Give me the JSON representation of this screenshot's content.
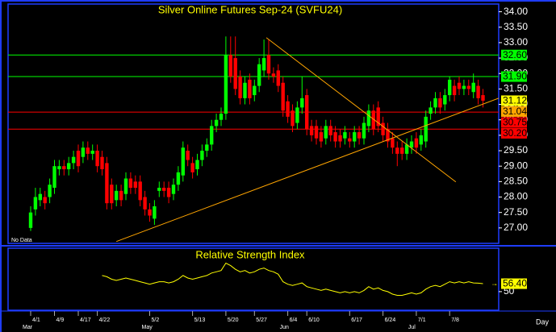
{
  "chart_data": [
    {
      "type": "candlestick",
      "title": "Silver Online Futures Sep-24 (SVFU24)",
      "note": "No Data",
      "x_label": "Day",
      "categories": [
        "4/1",
        null,
        null,
        null,
        null,
        "4/9",
        null,
        null,
        null,
        null,
        "4/17",
        null,
        null,
        null,
        "4/22",
        null,
        null,
        null,
        null,
        null,
        null,
        null,
        null,
        null,
        null,
        "5/2",
        null,
        null,
        null,
        null,
        null,
        null,
        null,
        null,
        "5/13",
        null,
        null,
        null,
        null,
        null,
        null,
        "5/20",
        null,
        null,
        null,
        null,
        null,
        "5/27",
        null,
        null,
        null,
        null,
        null,
        null,
        "6/4",
        null,
        null,
        null,
        "6/10",
        null,
        null,
        null,
        null,
        null,
        null,
        null,
        null,
        "6/17",
        null,
        null,
        null,
        null,
        null,
        null,
        "6/24",
        null,
        null,
        null,
        null,
        null,
        null,
        "7/1",
        null,
        null,
        null,
        null,
        null,
        null,
        "7/8",
        null,
        null,
        null,
        null,
        null,
        null,
        null
      ],
      "months": [
        "Mar",
        null,
        null,
        null,
        null,
        null,
        null,
        null,
        null,
        null,
        null,
        null,
        null,
        null,
        null,
        null,
        null,
        null,
        null,
        null,
        null,
        null,
        null,
        null,
        null,
        "May",
        null,
        null,
        null,
        null,
        null,
        null,
        null,
        null,
        null,
        null,
        null,
        null,
        null,
        null,
        null,
        null,
        null,
        null,
        null,
        null,
        null,
        null,
        null,
        null,
        null,
        null,
        null,
        null,
        "Jun",
        null,
        null,
        null,
        null,
        null,
        null,
        null,
        null,
        null,
        null,
        null,
        null,
        null,
        null,
        null,
        null,
        null,
        null,
        null,
        null,
        null,
        null,
        null,
        null,
        null,
        null,
        "Jul",
        null,
        null,
        null,
        null,
        null,
        null,
        null,
        null,
        null,
        null,
        null,
        null,
        null,
        null
      ],
      "open": [
        27.0,
        27.6,
        27.9,
        28.0,
        28.0,
        28.3,
        28.9,
        29.0,
        28.9,
        29.1,
        29.5,
        29.3,
        29.6,
        29.4,
        29.5,
        29.3,
        29.1,
        28.4,
        27.9,
        28.2,
        28.1,
        28.6,
        28.5,
        28.5,
        28.0,
        27.6,
        27.3,
        28.2,
        28.3,
        28.3,
        28.1,
        28.4,
        28.7,
        29.5,
        29.1,
        28.9,
        29.2,
        29.5,
        29.7,
        30.3,
        30.5,
        30.7,
        32.6,
        32.5,
        31.9,
        31.2,
        31.8,
        31.3,
        31.6,
        32.1,
        32.6,
        32.0,
        32.1,
        31.7,
        31.1,
        30.8,
        30.4,
        30.9,
        31.3,
        30.3,
        30.3,
        30.1,
        29.9,
        30.3,
        30.1,
        30.0,
        29.9,
        29.9,
        29.8,
        30.1,
        29.9,
        30.3,
        30.8,
        30.9,
        30.4,
        30.2,
        29.9,
        29.6,
        29.6,
        29.4,
        29.6,
        29.9,
        29.7,
        29.8,
        30.7,
        30.9,
        31.2,
        31.0,
        31.3,
        31.6,
        31.7,
        31.5,
        31.6,
        31.4,
        31.6,
        31.3
      ],
      "high": [
        27.7,
        28.3,
        28.3,
        28.2,
        28.6,
        29.2,
        29.2,
        29.2,
        29.3,
        29.5,
        29.7,
        29.8,
        29.8,
        29.7,
        29.7,
        29.5,
        29.3,
        28.6,
        28.4,
        28.4,
        28.8,
        28.8,
        28.7,
        28.7,
        28.2,
        27.8,
        27.9,
        28.5,
        28.5,
        28.5,
        28.6,
        29.0,
        29.8,
        29.7,
        29.3,
        29.4,
        29.7,
        29.9,
        30.5,
        30.7,
        30.9,
        33.2,
        33.2,
        33.2,
        32.1,
        31.9,
        32.0,
        31.8,
        32.5,
        33.1,
        33.1,
        32.2,
        32.3,
        31.9,
        31.3,
        31.0,
        31.1,
        31.9,
        31.5,
        30.5,
        30.5,
        30.3,
        30.5,
        30.5,
        30.3,
        30.2,
        30.3,
        30.1,
        30.3,
        30.3,
        30.6,
        31.0,
        31.0,
        31.1,
        30.6,
        30.4,
        30.1,
        29.8,
        29.8,
        29.9,
        30.0,
        30.1,
        30.2,
        30.8,
        31.1,
        31.4,
        31.4,
        31.5,
        31.9,
        31.8,
        31.9,
        31.8,
        31.8,
        32.0,
        31.8,
        31.5
      ],
      "low": [
        26.9,
        27.4,
        27.7,
        27.6,
        27.8,
        28.1,
        28.7,
        28.7,
        28.7,
        28.9,
        28.8,
        29.1,
        29.2,
        29.2,
        28.8,
        28.7,
        27.6,
        27.6,
        27.7,
        27.7,
        27.9,
        28.1,
        28.1,
        27.7,
        27.4,
        27.2,
        27.1,
        28.0,
        28.0,
        27.8,
        27.9,
        28.2,
        28.5,
        29.0,
        28.6,
        28.7,
        29.0,
        29.3,
        29.5,
        30.1,
        30.3,
        30.5,
        31.7,
        31.3,
        31.0,
        31.0,
        31.0,
        31.1,
        31.4,
        31.9,
        31.8,
        31.7,
        31.4,
        30.6,
        30.4,
        30.1,
        30.2,
        30.7,
        30.0,
        29.8,
        29.7,
        29.6,
        29.7,
        29.8,
        29.6,
        29.6,
        29.7,
        29.6,
        29.6,
        29.7,
        29.7,
        30.1,
        30.0,
        30.1,
        29.8,
        29.6,
        29.4,
        29.0,
        29.2,
        29.2,
        29.4,
        29.4,
        29.5,
        29.6,
        30.5,
        30.7,
        30.7,
        30.8,
        31.1,
        31.1,
        31.3,
        31.3,
        31.3,
        31.2,
        31.0,
        30.9
      ],
      "close": [
        27.5,
        28.0,
        28.1,
        27.8,
        28.4,
        29.0,
        29.0,
        28.9,
        29.1,
        29.3,
        29.0,
        29.6,
        29.4,
        29.5,
        29.0,
        28.9,
        27.8,
        27.8,
        28.2,
        27.9,
        28.6,
        28.3,
        28.3,
        27.9,
        27.6,
        27.4,
        27.7,
        28.3,
        28.2,
        28.0,
        28.4,
        28.8,
        29.6,
        29.2,
        28.8,
        29.2,
        29.5,
        29.7,
        30.3,
        30.5,
        30.7,
        32.6,
        31.9,
        31.5,
        31.2,
        31.7,
        31.2,
        31.6,
        32.3,
        32.5,
        32.0,
        31.9,
        31.6,
        30.8,
        30.6,
        30.3,
        30.9,
        31.2,
        30.2,
        30.0,
        29.9,
        29.8,
        30.3,
        30.0,
        29.8,
        29.8,
        30.1,
        29.8,
        30.1,
        29.9,
        30.4,
        30.8,
        30.2,
        30.3,
        30.0,
        29.8,
        29.6,
        29.4,
        29.4,
        29.7,
        29.8,
        29.6,
        30.0,
        30.6,
        30.9,
        31.2,
        30.9,
        31.3,
        31.8,
        31.3,
        31.5,
        31.6,
        31.5,
        31.7,
        31.2,
        31.12
      ],
      "up_color": "#00ff00",
      "down_color": "#ff0000",
      "ylim": [
        26.5,
        34.25
      ],
      "yticks": [
        {
          "value": 27,
          "label": "27.00"
        },
        {
          "value": 27.5,
          "label": "27.50"
        },
        {
          "value": 28,
          "label": "28.00"
        },
        {
          "value": 28.5,
          "label": "28.50"
        },
        {
          "value": 29,
          "label": "29.00"
        },
        {
          "value": 29.5,
          "label": "29.50"
        },
        {
          "value": 30,
          "label": "30.00"
        },
        {
          "value": 30.5,
          "label": "30.50"
        },
        {
          "value": 31,
          "label": "31.00"
        },
        {
          "value": 31.5,
          "label": "31.50"
        },
        {
          "value": 32,
          "label": "32.00"
        },
        {
          "value": 32.5,
          "label": "32.50"
        },
        {
          "value": 33,
          "label": "33.00"
        },
        {
          "value": 33.5,
          "label": "33.50"
        },
        {
          "value": 34,
          "label": "34.00"
        }
      ],
      "levels": [
        {
          "value": 32.6,
          "label": "32.60",
          "color": "#00ff00"
        },
        {
          "value": 31.9,
          "label": "31.90",
          "color": "#00ff00"
        },
        {
          "value": 30.75,
          "label": "30.75",
          "color": "#ff0000"
        },
        {
          "value": 30.2,
          "label": "30.20",
          "color": "#ff0000"
        }
      ],
      "markers": [
        {
          "value": 31.12,
          "label": "31.12",
          "color": "#ffff00"
        },
        {
          "value": 31.04,
          "label": "31.04",
          "color": "#ffa500"
        }
      ],
      "trendlines": [
        {
          "x": [
            18,
            98.3
          ],
          "y": [
            26.56,
            31.2
          ],
          "color": "#ffa500"
        },
        {
          "x": [
            49.5,
            89.3
          ],
          "y": [
            33.16,
            28.49
          ],
          "color": "#ffa500"
        }
      ]
    },
    {
      "type": "line",
      "title": "Relative Strength Index",
      "series": [
        {
          "name": "RSI",
          "color": "#ffff00",
          "values": [
            null,
            null,
            null,
            null,
            null,
            null,
            null,
            null,
            null,
            null,
            null,
            null,
            null,
            null,
            null,
            63,
            62,
            60,
            59,
            60,
            61,
            60,
            59,
            58,
            57,
            56,
            57,
            58,
            58,
            57,
            58,
            60,
            63,
            61,
            60,
            61,
            62,
            63,
            65,
            66,
            67,
            73,
            71,
            68,
            66,
            67,
            65,
            66,
            68,
            69,
            67,
            66,
            64,
            58,
            56,
            55,
            56,
            57,
            54,
            53,
            52,
            51,
            52,
            51,
            50,
            49,
            50,
            49,
            50,
            49,
            51,
            54,
            52,
            53,
            51,
            50,
            48,
            47,
            47,
            48,
            49,
            48,
            49,
            52,
            54,
            55,
            54,
            56,
            58,
            57,
            58,
            57,
            58,
            57,
            56.8,
            56.4
          ],
          "value_labels": {
            "95": "56.40"
          }
        }
      ],
      "ylim": [
        35,
        85
      ],
      "yticks": [
        50
      ]
    }
  ]
}
